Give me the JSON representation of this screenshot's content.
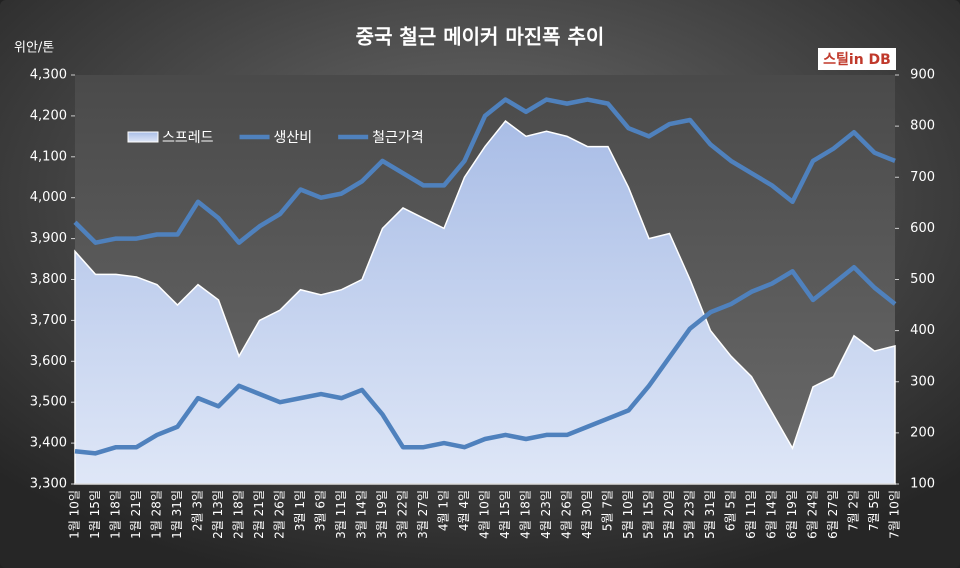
{
  "chart_data": {
    "type": "line",
    "title": "중국 철근 메이커 마진폭 추이",
    "y_label": "위안/톤",
    "logo": "스틸in DB",
    "categories": [
      "1월 10일",
      "1월 15일",
      "1월 18일",
      "1월 21일",
      "1월 28일",
      "1월 31일",
      "2월 3일",
      "2월 13일",
      "2월 18일",
      "2월 21일",
      "2월 26일",
      "3월 1일",
      "3월 6일",
      "3월 11일",
      "3월 14일",
      "3월 19일",
      "3월 22일",
      "3월 27일",
      "4월 1일",
      "4월 4일",
      "4월 10일",
      "4월 15일",
      "4월 18일",
      "4월 23일",
      "4월 26일",
      "4월 30일",
      "5월 7일",
      "5월 10일",
      "5월 15일",
      "5월 20일",
      "5월 23일",
      "5월 31일",
      "6월 5일",
      "6월 11일",
      "6월 14일",
      "6월 19일",
      "6월 24일",
      "6월 27일",
      "7월 2일",
      "7월 5일",
      "7월 10일"
    ],
    "series": [
      {
        "name": "스프레드",
        "color": "#b9c9ea",
        "axis": "y2",
        "kind": "area",
        "values": [
          555,
          510,
          510,
          505,
          490,
          450,
          490,
          460,
          350,
          420,
          440,
          480,
          470,
          480,
          500,
          600,
          640,
          620,
          600,
          700,
          760,
          810,
          780,
          790,
          780,
          760,
          760,
          680,
          580,
          590,
          500,
          400,
          350,
          310,
          240,
          170,
          290,
          310,
          390,
          360,
          370
        ]
      },
      {
        "name": "생산비",
        "color": "#4f81bd",
        "kind": "line",
        "values": [
          3380,
          3375,
          3390,
          3390,
          3420,
          3440,
          3510,
          3490,
          3540,
          3520,
          3500,
          3510,
          3520,
          3510,
          3530,
          3470,
          3390,
          3390,
          3400,
          3390,
          3410,
          3420,
          3410,
          3420,
          3420,
          3440,
          3460,
          3480,
          3540,
          3610,
          3680,
          3720,
          3740,
          3770,
          3790,
          3820,
          3750,
          3790,
          3830,
          3780,
          3740
        ]
      },
      {
        "name": "철근가격",
        "color": "#4f81bd",
        "kind": "line",
        "values": [
          3940,
          3890,
          3900,
          3900,
          3910,
          3910,
          3990,
          3950,
          3890,
          3930,
          3960,
          4020,
          4000,
          4010,
          4040,
          4090,
          4060,
          4030,
          4030,
          4090,
          4200,
          4240,
          4210,
          4240,
          4230,
          4240,
          4230,
          4170,
          4150,
          4180,
          4190,
          4130,
          4090,
          4060,
          4030,
          3990,
          4090,
          4120,
          4160,
          4110,
          4090
        ]
      }
    ],
    "ylim": [
      3300,
      4300
    ],
    "yticks": [
      {
        "value": 3300,
        "label": "3,300"
      },
      {
        "value": 3400,
        "label": "3,400"
      },
      {
        "value": 3500,
        "label": "3,500"
      },
      {
        "value": 3600,
        "label": "3,600"
      },
      {
        "value": 3700,
        "label": "3,700"
      },
      {
        "value": 3800,
        "label": "3,800"
      },
      {
        "value": 3900,
        "label": "3,900"
      },
      {
        "value": 4000,
        "label": "4,000"
      },
      {
        "value": 4100,
        "label": "4,100"
      },
      {
        "value": 4200,
        "label": "4,200"
      },
      {
        "value": 4300,
        "label": "4,300"
      }
    ],
    "y2lim": [
      100,
      900
    ],
    "y2ticks": [
      100,
      200,
      300,
      400,
      500,
      600,
      700,
      800,
      900
    ]
  }
}
